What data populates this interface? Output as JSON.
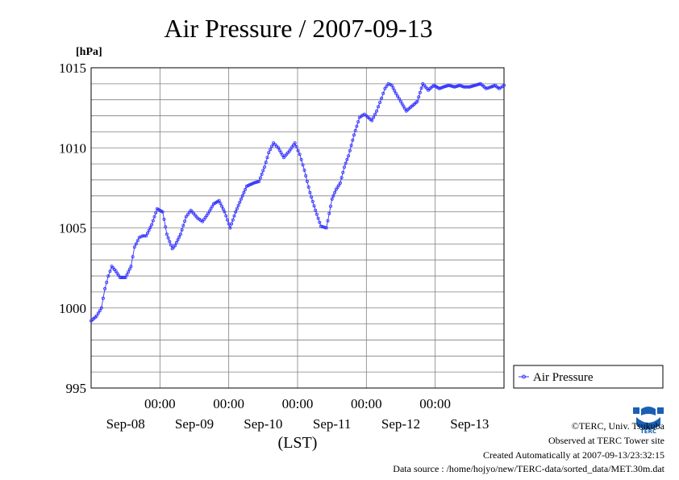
{
  "chart_data": {
    "type": "line",
    "title": "Air Pressure / 2007-09-13",
    "ylabel": "[hPa]",
    "xlabel": "(LST)",
    "ylim": [
      995,
      1015
    ],
    "yticks": [
      "995",
      "1000",
      "1005",
      "1010",
      "1015"
    ],
    "xlim_days": [
      0,
      6
    ],
    "xticks_time": [
      "00:00",
      "00:00",
      "00:00",
      "00:00",
      "00:00"
    ],
    "xticks_date": [
      "Sep-08",
      "Sep-09",
      "Sep-10",
      "Sep-11",
      "Sep-12",
      "Sep-13"
    ],
    "grid": true,
    "legend_position": "right",
    "series": [
      {
        "name": "Air Pressure",
        "color": "#3333ff",
        "x": [
          0,
          0.08,
          0.15,
          0.2,
          0.25,
          0.3,
          0.36,
          0.42,
          0.5,
          0.58,
          0.63,
          0.7,
          0.75,
          0.8,
          0.88,
          0.96,
          1.04,
          1.1,
          1.18,
          1.22,
          1.3,
          1.38,
          1.45,
          1.55,
          1.62,
          1.7,
          1.78,
          1.86,
          1.94,
          2.02,
          2.1,
          2.18,
          2.26,
          2.36,
          2.44,
          2.52,
          2.58,
          2.65,
          2.72,
          2.8,
          2.88,
          2.96,
          3.03,
          3.1,
          3.18,
          3.26,
          3.34,
          3.42,
          3.5,
          3.56,
          3.62,
          3.68,
          3.74,
          3.82,
          3.9,
          3.97,
          4.0,
          4.08,
          4.15,
          4.22,
          4.27,
          4.32,
          4.37,
          4.43,
          4.5,
          4.58,
          4.66,
          4.74,
          4.82,
          4.9,
          4.98,
          5.06,
          5.12,
          5.2,
          5.28,
          5.36,
          5.42,
          5.5,
          5.58,
          5.66,
          5.74,
          5.81,
          5.87,
          5.93,
          6.0
        ],
        "y": [
          999.2,
          999.5,
          1000.0,
          1001.2,
          1002.0,
          1002.6,
          1002.3,
          1001.9,
          1001.9,
          1002.6,
          1003.8,
          1004.4,
          1004.5,
          1004.5,
          1005.2,
          1006.2,
          1006.0,
          1004.6,
          1003.7,
          1003.9,
          1004.6,
          1005.7,
          1006.1,
          1005.6,
          1005.4,
          1005.9,
          1006.5,
          1006.7,
          1006.0,
          1005.0,
          1006.0,
          1006.8,
          1007.6,
          1007.8,
          1007.9,
          1008.8,
          1009.7,
          1010.3,
          1010.0,
          1009.4,
          1009.8,
          1010.3,
          1009.6,
          1008.6,
          1007.2,
          1006.1,
          1005.1,
          1005.0,
          1006.8,
          1007.4,
          1007.8,
          1008.8,
          1009.5,
          1010.8,
          1011.9,
          1012.1,
          1012.0,
          1011.7,
          1012.3,
          1013.1,
          1013.7,
          1014.0,
          1013.9,
          1013.4,
          1012.9,
          1012.3,
          1012.6,
          1012.9,
          1014.0,
          1013.6,
          1013.9,
          1013.7,
          1013.8,
          1013.9,
          1013.8,
          1013.9,
          1013.8,
          1013.8,
          1013.9,
          1014.0,
          1013.7,
          1013.8,
          1013.9,
          1013.7,
          1013.9
        ]
      }
    ]
  },
  "footer": {
    "copyright": "©TERC, Univ. Tsukuba",
    "observed": "Observed at TERC Tower site",
    "created": "Created Automatically at 2007-09-13/23:32:15",
    "source": "Data source : /home/hojyo/new/TERC-data/sorted_data/MET.30m.dat"
  },
  "logo": {
    "text": "TERC",
    "icon": "terc-logo-icon",
    "color": "#1a5fb4"
  }
}
